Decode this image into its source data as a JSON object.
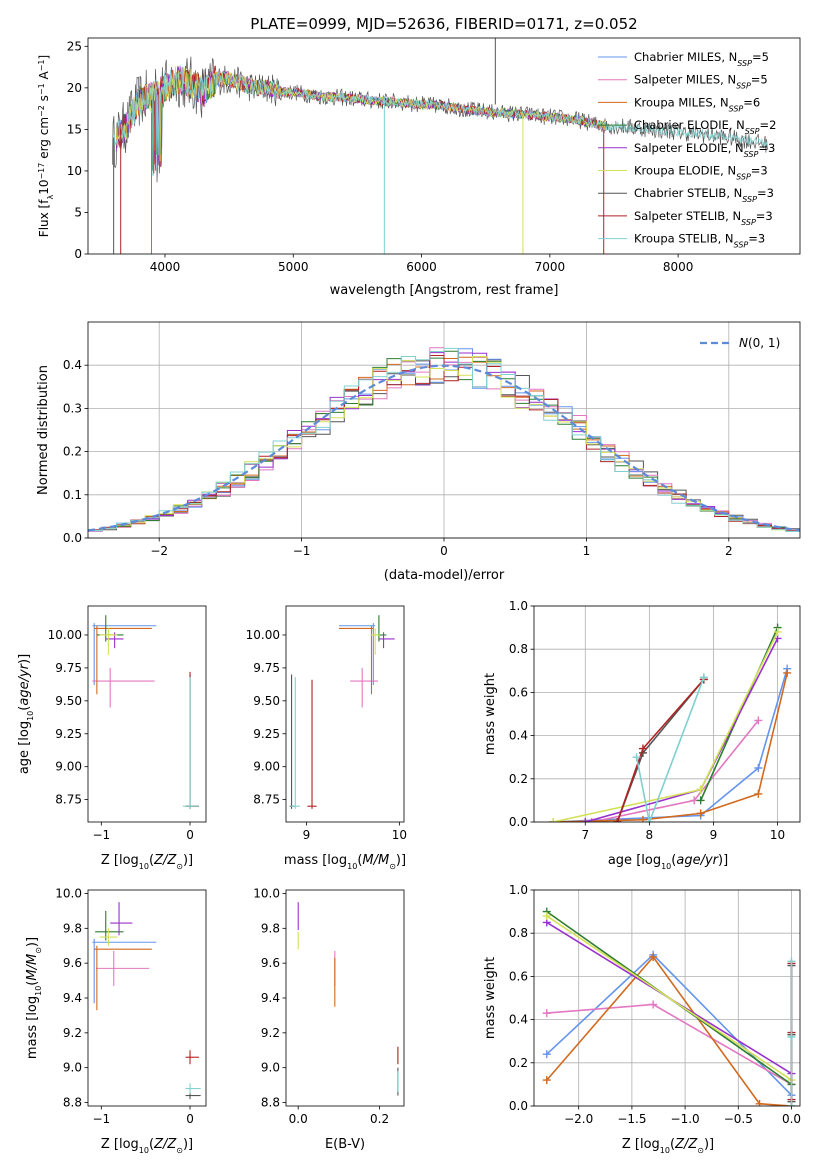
{
  "figure_title": "PLATE=0999, MJD=52636, FIBERID=0171, z=0.052",
  "colors": {
    "chabrier_miles": "#6495ed",
    "salpeter_miles": "#e377c2",
    "kroupa_miles": "#d2691e",
    "chabrier_elodie": "#2e7d32",
    "salpeter_elodie": "#9932cc",
    "kroupa_elodie": "#d4e157",
    "chabrier_stelib": "#555555",
    "salpeter_stelib": "#b22222",
    "kroupa_stelib": "#80d0d0"
  },
  "chart_data": [
    {
      "id": "spectrum",
      "type": "line",
      "xlabel": "wavelength [Angstrom, rest frame]",
      "xlim": [
        3400,
        8950
      ],
      "ylim": [
        0,
        26
      ],
      "xticks": [
        4000,
        5000,
        6000,
        7000,
        8000
      ],
      "yticks": [
        0,
        5,
        10,
        15,
        20,
        25
      ],
      "legend_position": "upper right",
      "series": [
        {
          "name": "Chabrier MILES, N_SSP=5",
          "color_key": "chabrier_miles"
        },
        {
          "name": "Salpeter MILES, N_SSP=5",
          "color_key": "salpeter_miles"
        },
        {
          "name": "Kroupa MILES, N_SSP=6",
          "color_key": "kroupa_miles"
        },
        {
          "name": "Chabrier ELODIE, N_SSP=2",
          "color_key": "chabrier_elodie"
        },
        {
          "name": "Salpeter ELODIE, N_SSP=3",
          "color_key": "salpeter_elodie"
        },
        {
          "name": "Kroupa ELODIE, N_SSP=3",
          "color_key": "kroupa_elodie"
        },
        {
          "name": "Chabrier STELIB, N_SSP=3",
          "color_key": "chabrier_stelib"
        },
        {
          "name": "Salpeter STELIB, N_SSP=3",
          "color_key": "salpeter_stelib"
        },
        {
          "name": "Kroupa STELIB, N_SSP=3",
          "color_key": "kroupa_stelib"
        }
      ],
      "continuum": [
        [
          3600,
          13.5
        ],
        [
          3700,
          15.5
        ],
        [
          3800,
          18.5
        ],
        [
          3900,
          19
        ],
        [
          4000,
          20
        ],
        [
          4100,
          21
        ],
        [
          4200,
          20.5
        ],
        [
          4300,
          19.5
        ],
        [
          4400,
          21
        ],
        [
          4500,
          21
        ],
        [
          4600,
          20.5
        ],
        [
          4700,
          20
        ],
        [
          4800,
          20
        ],
        [
          4900,
          19.5
        ],
        [
          5000,
          19.5
        ],
        [
          5200,
          19
        ],
        [
          5400,
          18.8
        ],
        [
          5600,
          18.5
        ],
        [
          5800,
          18.3
        ],
        [
          6000,
          18
        ],
        [
          6200,
          17.8
        ],
        [
          6400,
          17.3
        ],
        [
          6600,
          17
        ],
        [
          6800,
          16.8
        ],
        [
          7000,
          16.5
        ],
        [
          7200,
          16.2
        ],
        [
          7400,
          15.5
        ],
        [
          7600,
          15.3
        ],
        [
          7800,
          15
        ],
        [
          8000,
          14.7
        ],
        [
          8200,
          14.4
        ],
        [
          8400,
          14
        ],
        [
          8600,
          13.5
        ],
        [
          8700,
          13.2
        ]
      ]
    },
    {
      "id": "residuals",
      "type": "line",
      "xlabel": "(data-model)/error",
      "ylabel": "Normed distribution",
      "xlim": [
        -2.5,
        2.5
      ],
      "ylim": [
        0,
        0.5
      ],
      "xticks": [
        -2,
        -1,
        0,
        1,
        2
      ],
      "yticks": [
        0.0,
        0.1,
        0.2,
        0.3,
        0.4
      ],
      "grid": true,
      "legend_position": "upper right",
      "reference_label": "N(0,1)",
      "reference_color": "#5b8bd9"
    },
    {
      "id": "age_vs_Z",
      "type": "scatter",
      "xlabel": "Z [log10(Z/Z_sun)]",
      "ylabel": "age  [log10(age/yr)]",
      "xlim": [
        -1.15,
        0.18
      ],
      "ylim": [
        8.58,
        10.22
      ],
      "xticks": [
        -1,
        0
      ],
      "yticks": [
        8.75,
        9.0,
        9.25,
        9.5,
        9.75,
        10.0
      ],
      "grid": false,
      "points": [
        {
          "color_key": "chabrier_miles",
          "x": -1.08,
          "y": 10.07,
          "xerr": [
            0.02,
            0.7
          ],
          "yerr": [
            0.45,
            0.02
          ]
        },
        {
          "color_key": "salpeter_miles",
          "x": -0.9,
          "y": 9.65,
          "xerr": [
            0.2,
            0.5
          ],
          "yerr": [
            0.2,
            0.1
          ]
        },
        {
          "color_key": "kroupa_miles",
          "x": -1.05,
          "y": 10.05,
          "xerr": [
            0.03,
            0.62
          ],
          "yerr": [
            0.5,
            0.02
          ]
        },
        {
          "color_key": "chabrier_elodie",
          "x": -0.95,
          "y": 10.0,
          "xerr": [
            0.1,
            0.2
          ],
          "yerr": [
            0.05,
            0.15
          ]
        },
        {
          "color_key": "salpeter_elodie",
          "x": -0.85,
          "y": 9.97,
          "xerr": [
            0.1,
            0.1
          ],
          "yerr": [
            0.07,
            0.05
          ]
        },
        {
          "color_key": "kroupa_elodie",
          "x": -0.92,
          "y": 10.0,
          "xerr": [
            0.1,
            0.1
          ],
          "yerr": [
            0.15,
            0.05
          ]
        },
        {
          "color_key": "chabrier_stelib",
          "x": 0.0,
          "y": 8.7,
          "xerr": [
            0.05,
            0.1
          ],
          "yerr": [
            0.02,
            1.0
          ]
        },
        {
          "color_key": "salpeter_stelib",
          "x": 0.0,
          "y": 8.7,
          "xerr": [
            0.05,
            0.1
          ],
          "yerr": [
            0.02,
            1.02
          ]
        },
        {
          "color_key": "kroupa_stelib",
          "x": 0.0,
          "y": 8.7,
          "xerr": [
            0.08,
            0.1
          ],
          "yerr": [
            0.02,
            0.98
          ]
        }
      ]
    },
    {
      "id": "age_vs_mass",
      "type": "scatter",
      "xlabel": "mass [log10(M/M_sun)]",
      "xlim": [
        8.78,
        10.05
      ],
      "ylim": [
        8.58,
        10.22
      ],
      "xticks": [
        9,
        10
      ],
      "yticks": [
        8.75,
        9.0,
        9.25,
        9.5,
        9.75,
        10.0
      ],
      "grid": false,
      "points": [
        {
          "color_key": "chabrier_miles",
          "x": 9.72,
          "y": 10.07,
          "xerr": [
            0.37,
            0.02
          ],
          "yerr": [
            0.45,
            0.02
          ]
        },
        {
          "color_key": "salpeter_miles",
          "x": 9.6,
          "y": 9.65,
          "xerr": [
            0.13,
            0.17
          ],
          "yerr": [
            0.2,
            0.1
          ]
        },
        {
          "color_key": "kroupa_miles",
          "x": 9.7,
          "y": 10.05,
          "xerr": [
            0.35,
            0.02
          ],
          "yerr": [
            0.5,
            0.02
          ]
        },
        {
          "color_key": "chabrier_elodie",
          "x": 9.78,
          "y": 10.0,
          "xerr": [
            0.05,
            0.08
          ],
          "yerr": [
            0.05,
            0.15
          ]
        },
        {
          "color_key": "salpeter_elodie",
          "x": 9.83,
          "y": 9.97,
          "xerr": [
            0.05,
            0.12
          ],
          "yerr": [
            0.07,
            0.05
          ]
        },
        {
          "color_key": "kroupa_elodie",
          "x": 9.74,
          "y": 10.0,
          "xerr": [
            0.05,
            0.05
          ],
          "yerr": [
            0.15,
            0.05
          ]
        },
        {
          "color_key": "chabrier_stelib",
          "x": 8.84,
          "y": 8.7,
          "xerr": [
            0.02,
            0.03
          ],
          "yerr": [
            0.02,
            1.0
          ]
        },
        {
          "color_key": "salpeter_stelib",
          "x": 9.06,
          "y": 8.7,
          "xerr": [
            0.05,
            0.05
          ],
          "yerr": [
            0.02,
            0.96
          ]
        },
        {
          "color_key": "kroupa_stelib",
          "x": 8.88,
          "y": 8.7,
          "xerr": [
            0.05,
            0.05
          ],
          "yerr": [
            0.02,
            0.98
          ]
        }
      ]
    },
    {
      "id": "weight_vs_age",
      "type": "line",
      "xlabel": "age  [log10(age/yr)]",
      "ylabel": "mass weight",
      "xlim": [
        6.2,
        10.35
      ],
      "ylim": [
        0,
        1.0
      ],
      "xticks": [
        7,
        8,
        9,
        10
      ],
      "yticks": [
        0.0,
        0.2,
        0.4,
        0.6,
        0.8,
        1.0
      ],
      "grid": true,
      "series": [
        {
          "color_key": "chabrier_miles",
          "x": [
            6.5,
            8.8,
            9.7,
            10.15
          ],
          "y": [
            0.0,
            0.03,
            0.25,
            0.71
          ]
        },
        {
          "color_key": "salpeter_miles",
          "x": [
            7.1,
            8.7,
            9.7
          ],
          "y": [
            0.0,
            0.1,
            0.47
          ]
        },
        {
          "color_key": "kroupa_miles",
          "x": [
            6.5,
            7.9,
            8.8,
            9.7,
            10.15
          ],
          "y": [
            0.0,
            0.01,
            0.04,
            0.13,
            0.69
          ]
        },
        {
          "color_key": "chabrier_elodie",
          "x": [
            8.8,
            10.0
          ],
          "y": [
            0.1,
            0.9
          ]
        },
        {
          "color_key": "salpeter_elodie",
          "x": [
            7.0,
            8.8,
            10.0
          ],
          "y": [
            0.0,
            0.15,
            0.85
          ]
        },
        {
          "color_key": "kroupa_elodie",
          "x": [
            6.5,
            8.8,
            10.0
          ],
          "y": [
            0.0,
            0.15,
            0.88
          ]
        },
        {
          "color_key": "chabrier_stelib",
          "x": [
            7.5,
            7.9,
            8.85
          ],
          "y": [
            0.0,
            0.32,
            0.66
          ]
        },
        {
          "color_key": "salpeter_stelib",
          "x": [
            7.5,
            7.9,
            8.85
          ],
          "y": [
            0.0,
            0.34,
            0.66
          ]
        },
        {
          "color_key": "kroupa_stelib",
          "x": [
            7.8,
            8.0,
            8.85
          ],
          "y": [
            0.3,
            0.0,
            0.67
          ]
        }
      ]
    },
    {
      "id": "mass_vs_Z",
      "type": "scatter",
      "ylabel": "mass [log10(M/M_sun)]",
      "xlabel": "Z [log10(Z/Z_sun)]",
      "xlim": [
        -1.15,
        0.18
      ],
      "ylim": [
        8.78,
        10.02
      ],
      "xticks": [
        -1,
        0
      ],
      "yticks": [
        8.8,
        9.0,
        9.2,
        9.4,
        9.6,
        9.8,
        10.0
      ],
      "grid": false,
      "points": [
        {
          "color_key": "chabrier_miles",
          "x": -1.08,
          "y": 9.72,
          "xerr": [
            0.02,
            0.7
          ],
          "yerr": [
            0.35,
            0.02
          ]
        },
        {
          "color_key": "salpeter_miles",
          "x": -0.86,
          "y": 9.57,
          "xerr": [
            0.2,
            0.4
          ],
          "yerr": [
            0.1,
            0.1
          ]
        },
        {
          "color_key": "kroupa_miles",
          "x": -1.05,
          "y": 9.68,
          "xerr": [
            0.03,
            0.62
          ],
          "yerr": [
            0.35,
            0.02
          ]
        },
        {
          "color_key": "chabrier_elodie",
          "x": -0.95,
          "y": 9.78,
          "xerr": [
            0.12,
            0.2
          ],
          "yerr": [
            0.05,
            0.12
          ]
        },
        {
          "color_key": "salpeter_elodie",
          "x": -0.8,
          "y": 9.83,
          "xerr": [
            0.1,
            0.15
          ],
          "yerr": [
            0.07,
            0.12
          ]
        },
        {
          "color_key": "kroupa_elodie",
          "x": -0.92,
          "y": 9.75,
          "xerr": [
            0.1,
            0.1
          ],
          "yerr": [
            0.05,
            0.05
          ]
        },
        {
          "color_key": "chabrier_stelib",
          "x": 0.0,
          "y": 8.84,
          "xerr": [
            0.05,
            0.12
          ],
          "yerr": [
            0.02,
            0.02
          ]
        },
        {
          "color_key": "salpeter_stelib",
          "x": 0.0,
          "y": 9.06,
          "xerr": [
            0.05,
            0.1
          ],
          "yerr": [
            0.04,
            0.04
          ]
        },
        {
          "color_key": "kroupa_stelib",
          "x": 0.0,
          "y": 8.88,
          "xerr": [
            0.05,
            0.12
          ],
          "yerr": [
            0.03,
            0.03
          ]
        }
      ]
    },
    {
      "id": "mass_vs_ebv",
      "type": "scatter",
      "xlabel": "E(B-V)",
      "xlim": [
        -0.03,
        0.26
      ],
      "ylim": [
        8.78,
        10.02
      ],
      "xticks": [
        0.0,
        0.2
      ],
      "yticks": [
        8.8,
        9.0,
        9.2,
        9.4,
        9.6,
        9.8,
        10.0
      ],
      "grid": false,
      "points": [
        {
          "color_key": "kroupa_elodie",
          "x": 0.0,
          "y": 9.73,
          "xerr": [
            0,
            0
          ],
          "yerr": [
            0.05,
            0.05
          ]
        },
        {
          "color_key": "salpeter_elodie",
          "x": 0.0,
          "y": 9.85,
          "xerr": [
            0,
            0
          ],
          "yerr": [
            0.06,
            0.1
          ]
        },
        {
          "color_key": "salpeter_miles",
          "x": 0.09,
          "y": 9.57,
          "xerr": [
            0,
            0
          ],
          "yerr": [
            0.1,
            0.1
          ]
        },
        {
          "color_key": "kroupa_miles",
          "x": 0.09,
          "y": 9.53,
          "xerr": [
            0,
            0
          ],
          "yerr": [
            0.18,
            0.1
          ]
        },
        {
          "color_key": "salpeter_stelib",
          "x": 0.245,
          "y": 9.06,
          "xerr": [
            0,
            0
          ],
          "yerr": [
            0.04,
            0.06
          ]
        },
        {
          "color_key": "chabrier_stelib",
          "x": 0.245,
          "y": 8.92,
          "xerr": [
            0,
            0
          ],
          "yerr": [
            0.08,
            0.08
          ]
        },
        {
          "color_key": "kroupa_stelib",
          "x": 0.245,
          "y": 8.92,
          "xerr": [
            0,
            0
          ],
          "yerr": [
            0.06,
            0.06
          ]
        }
      ]
    },
    {
      "id": "weight_vs_Z",
      "type": "line",
      "xlabel": "Z [log10(Z/Z_sun)]",
      "ylabel": "mass weight",
      "xlim": [
        -2.42,
        0.08
      ],
      "ylim": [
        0,
        1.0
      ],
      "xticks": [
        -2.0,
        -1.5,
        -1.0,
        -0.5,
        0.0
      ],
      "yticks": [
        0.0,
        0.2,
        0.4,
        0.6,
        0.8,
        1.0
      ],
      "grid": true,
      "series": [
        {
          "color_key": "chabrier_miles",
          "x": [
            -2.3,
            -1.3,
            0.0
          ],
          "y": [
            0.24,
            0.7,
            0.05
          ]
        },
        {
          "color_key": "salpeter_miles",
          "x": [
            -2.3,
            -1.3,
            0.0
          ],
          "y": [
            0.43,
            0.47,
            0.1
          ]
        },
        {
          "color_key": "kroupa_miles",
          "x": [
            -2.3,
            -1.3,
            -0.3,
            0.0
          ],
          "y": [
            0.12,
            0.69,
            0.01,
            0.0
          ]
        },
        {
          "color_key": "chabrier_elodie",
          "x": [
            -2.3,
            0.0
          ],
          "y": [
            0.9,
            0.1
          ]
        },
        {
          "color_key": "salpeter_elodie",
          "x": [
            -2.3,
            0.0
          ],
          "y": [
            0.85,
            0.15
          ]
        },
        {
          "color_key": "kroupa_elodie",
          "x": [
            -2.3,
            0.0
          ],
          "y": [
            0.88,
            0.12
          ]
        },
        {
          "color_key": "chabrier_stelib",
          "x": [
            0.0,
            0.0,
            0.0
          ],
          "y": [
            0.02,
            0.33,
            0.65
          ]
        },
        {
          "color_key": "salpeter_stelib",
          "x": [
            0.0,
            0.0,
            0.0
          ],
          "y": [
            0.03,
            0.34,
            0.66
          ]
        },
        {
          "color_key": "kroupa_stelib",
          "x": [
            0.0,
            0.0,
            0.0
          ],
          "y": [
            0.0,
            0.32,
            0.67
          ]
        }
      ]
    }
  ]
}
